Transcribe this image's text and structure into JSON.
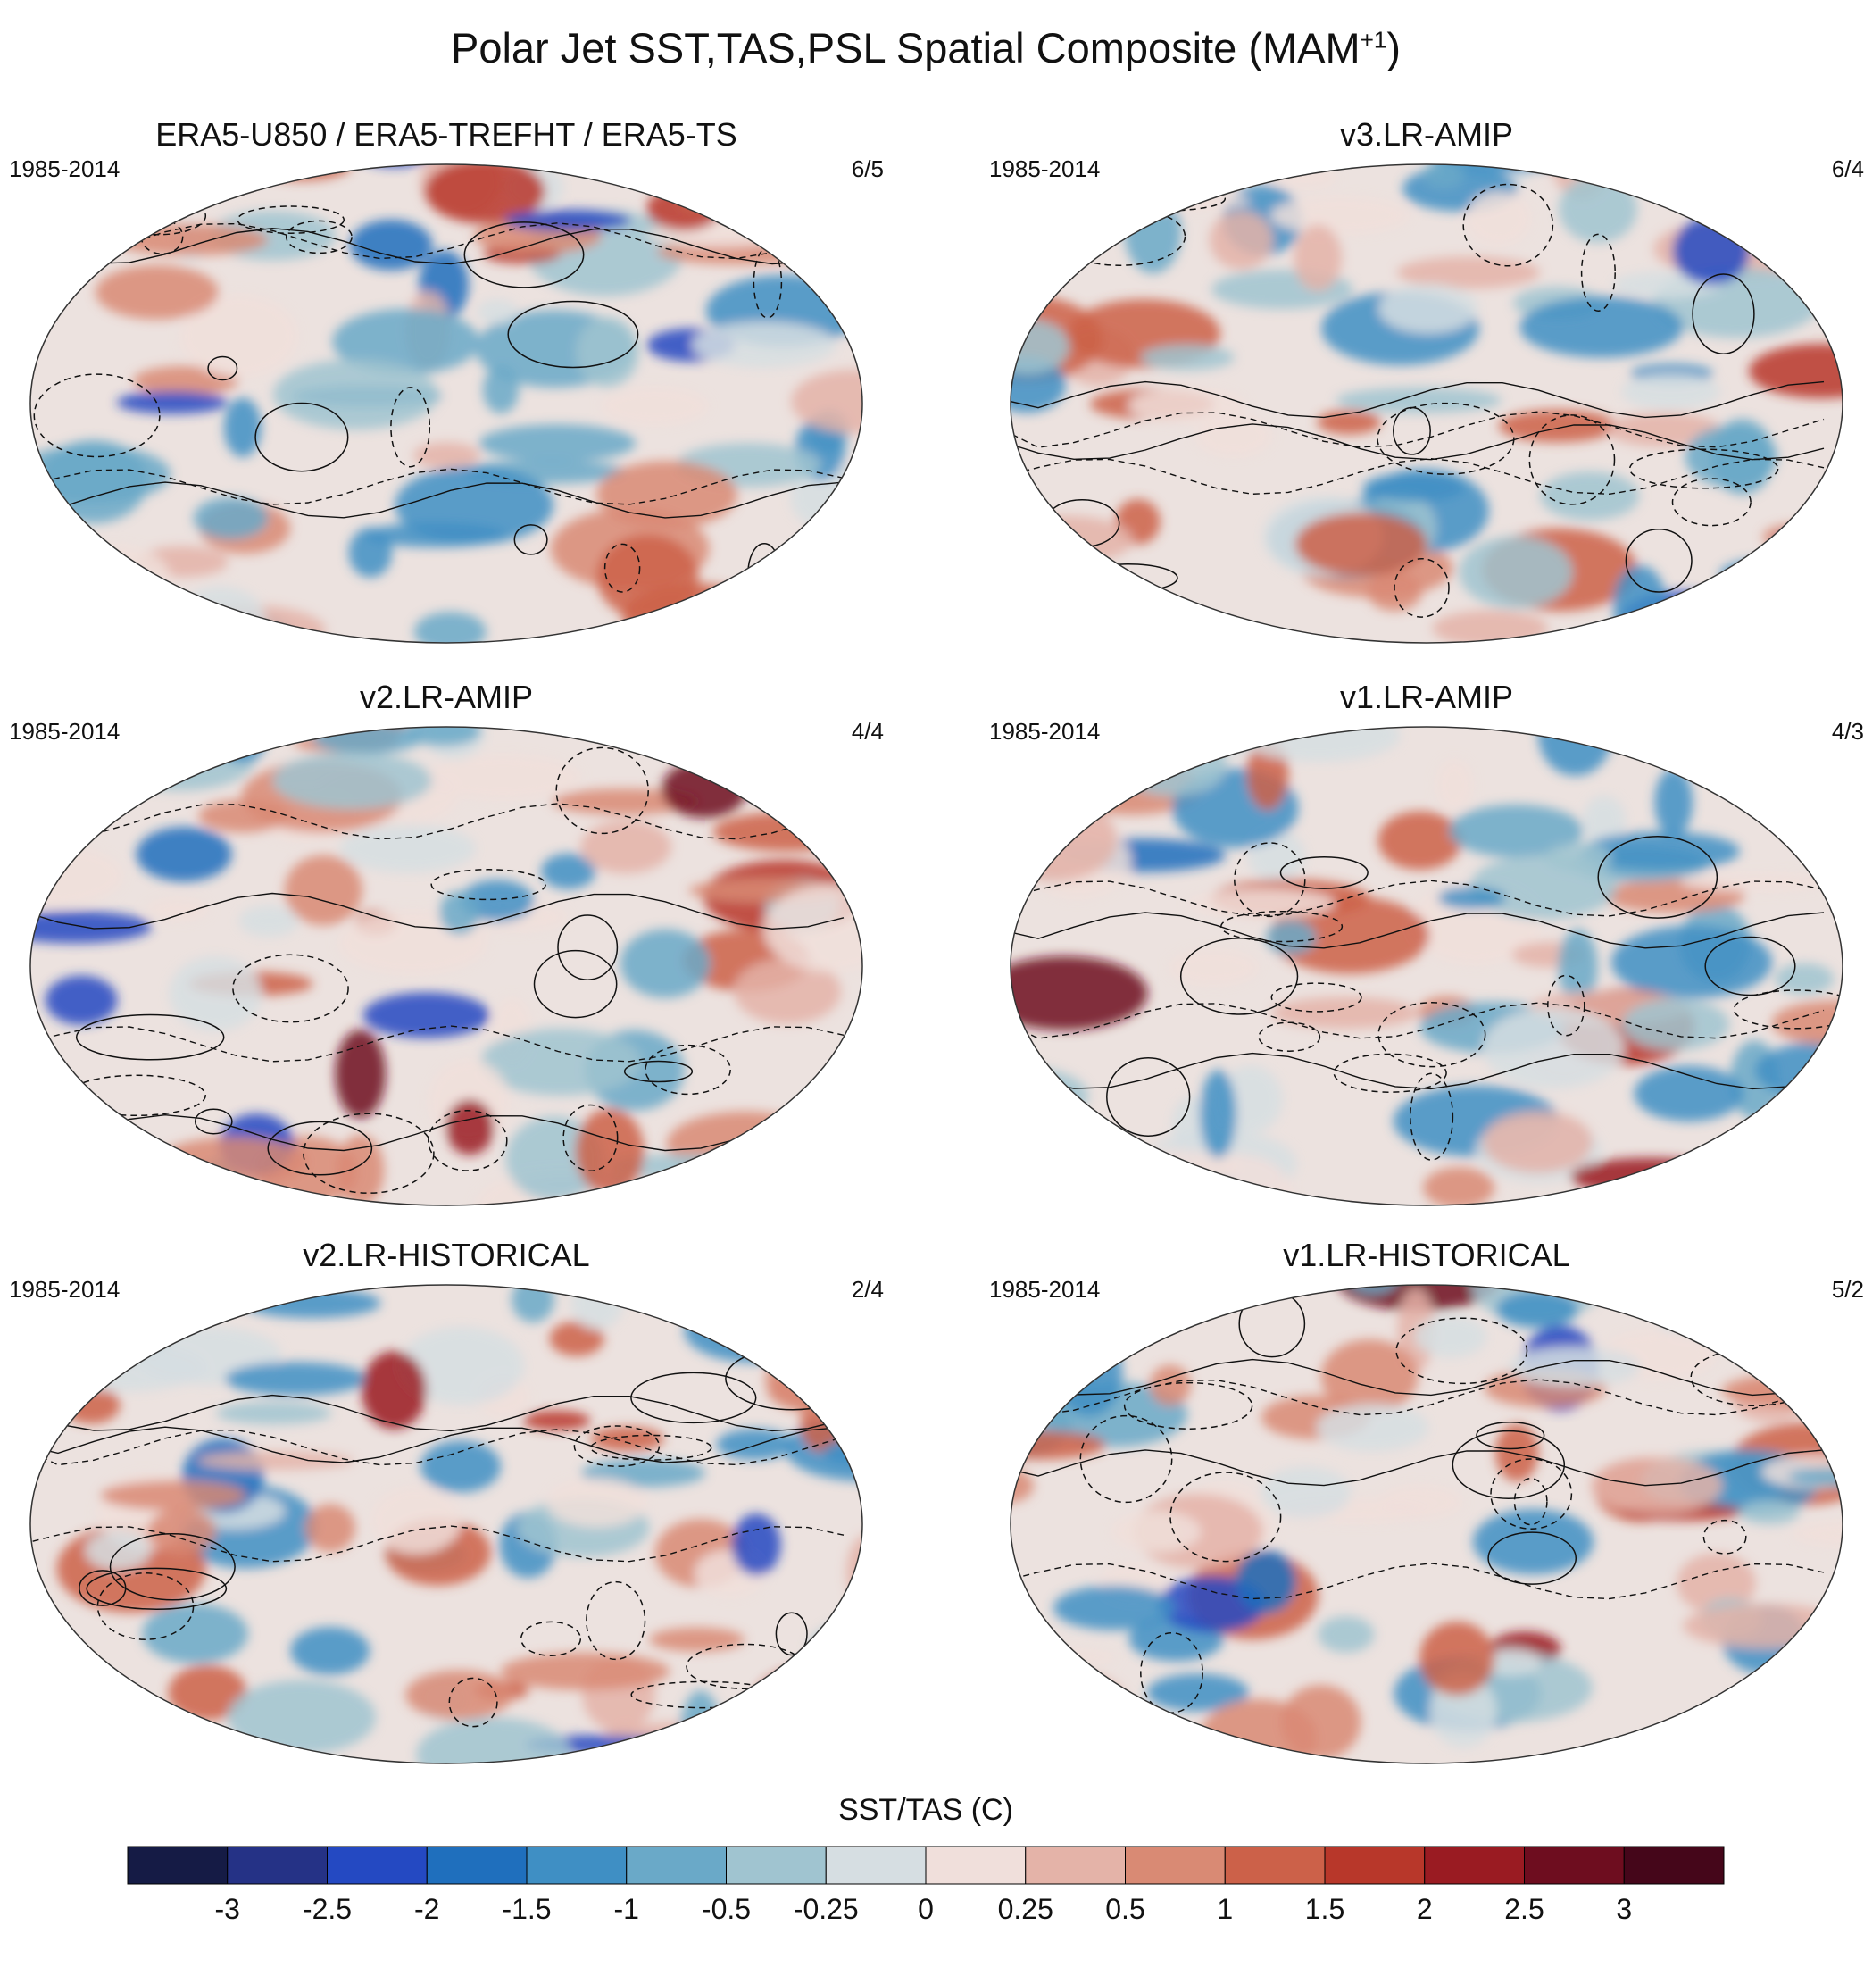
{
  "figure_title": "Polar Jet SST,TAS,PSL Spatial Composite (MAM",
  "figure_title_sup": "+1",
  "figure_title_end": ")",
  "panels": [
    {
      "title": "ERA5-U850 / ERA5-TREFHT / ERA5-TS",
      "years": "1985-2014",
      "count": "6/5"
    },
    {
      "title": "v3.LR-AMIP",
      "years": "1985-2014",
      "count": "6/4"
    },
    {
      "title": "v2.LR-AMIP",
      "years": "1985-2014",
      "count": "4/4"
    },
    {
      "title": "v1.LR-AMIP",
      "years": "1985-2014",
      "count": "4/3"
    },
    {
      "title": "v2.LR-HISTORICAL",
      "years": "1985-2014",
      "count": "2/4"
    },
    {
      "title": "v1.LR-HISTORICAL",
      "years": "1985-2014",
      "count": "5/2"
    }
  ],
  "colorbar": {
    "title": "SST/TAS (C)",
    "labels": [
      "-3",
      "-2.5",
      "-2",
      "-1.5",
      "-1",
      "-0.5",
      "-0.25",
      "0",
      "0.25",
      "0.5",
      "1",
      "1.5",
      "2",
      "2.5",
      "3"
    ],
    "colors": [
      "#151b45",
      "#253286",
      "#2449c2",
      "#1f6fbd",
      "#3f8fc4",
      "#6aa9c8",
      "#a0c4d0",
      "#d6dee2",
      "#f0dfdb",
      "#e4b3a8",
      "#d98a74",
      "#cc6149",
      "#b8372a",
      "#9a1b22",
      "#6e0d1f",
      "#45061a"
    ]
  }
}
